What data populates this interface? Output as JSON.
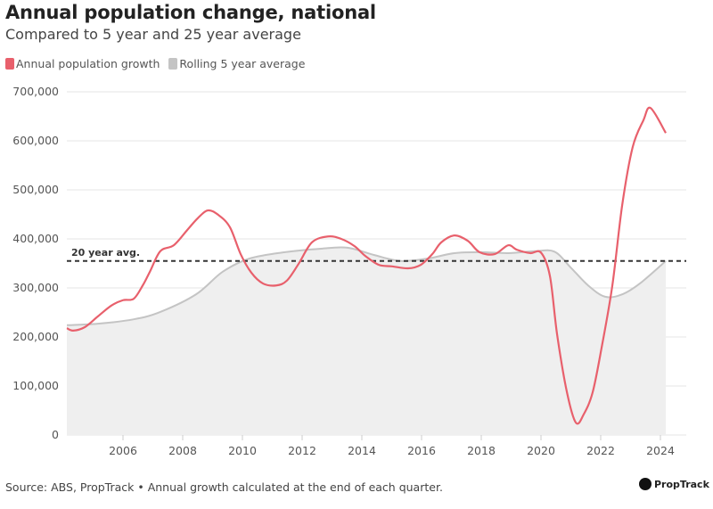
{
  "chart_data": {
    "type": "line",
    "title": "Annual population change, national",
    "subtitle": "Compared to 5 year and 25 year average",
    "xlabel": "",
    "ylabel": "",
    "xlim": [
      2004.1,
      2024.6
    ],
    "ylim": [
      0,
      700000
    ],
    "x_ticks": [
      "2006",
      "2008",
      "2010",
      "2012",
      "2014",
      "2016",
      "2018",
      "2020",
      "2022",
      "2024"
    ],
    "y_ticks": [
      "0",
      "100,000",
      "200,000",
      "300,000",
      "400,000",
      "500,000",
      "600,000",
      "700,000"
    ],
    "grid": true,
    "legend_position": "top-left",
    "series": [
      {
        "name": "Annual population growth",
        "color": "#e8606c",
        "style": "line",
        "points": [
          [
            2004.12,
            218000
          ],
          [
            2004.33,
            213000
          ],
          [
            2004.72,
            220000
          ],
          [
            2005.16,
            242000
          ],
          [
            2005.61,
            264000
          ],
          [
            2006.0,
            275000
          ],
          [
            2006.36,
            278000
          ],
          [
            2006.66,
            305000
          ],
          [
            2006.9,
            333000
          ],
          [
            2007.25,
            375000
          ],
          [
            2007.7,
            387000
          ],
          [
            2008.15,
            418000
          ],
          [
            2008.5,
            442000
          ],
          [
            2008.84,
            458000
          ],
          [
            2009.19,
            449000
          ],
          [
            2009.58,
            424000
          ],
          [
            2009.94,
            369000
          ],
          [
            2010.3,
            331000
          ],
          [
            2010.69,
            309000
          ],
          [
            2011.13,
            305000
          ],
          [
            2011.49,
            315000
          ],
          [
            2011.88,
            349000
          ],
          [
            2012.33,
            393000
          ],
          [
            2012.87,
            405000
          ],
          [
            2013.31,
            400000
          ],
          [
            2013.76,
            385000
          ],
          [
            2014.12,
            365000
          ],
          [
            2014.57,
            347000
          ],
          [
            2015.01,
            344000
          ],
          [
            2015.55,
            340000
          ],
          [
            2015.97,
            347000
          ],
          [
            2016.36,
            369000
          ],
          [
            2016.66,
            393000
          ],
          [
            2017.1,
            407000
          ],
          [
            2017.55,
            396000
          ],
          [
            2017.94,
            373000
          ],
          [
            2018.45,
            369000
          ],
          [
            2018.9,
            387000
          ],
          [
            2019.19,
            378000
          ],
          [
            2019.64,
            371000
          ],
          [
            2020.0,
            372000
          ],
          [
            2020.3,
            324000
          ],
          [
            2020.54,
            205000
          ],
          [
            2020.87,
            87000
          ],
          [
            2021.17,
            25000
          ],
          [
            2021.43,
            42000
          ],
          [
            2021.73,
            87000
          ],
          [
            2022.03,
            178000
          ],
          [
            2022.39,
            305000
          ],
          [
            2022.72,
            469000
          ],
          [
            2023.07,
            587000
          ],
          [
            2023.43,
            642000
          ],
          [
            2023.67,
            667000
          ],
          [
            2024.18,
            616000
          ]
        ]
      },
      {
        "name": "Rolling 5 year average",
        "color": "#c4c4c4",
        "style": "area",
        "points": [
          [
            2004.12,
            224000
          ],
          [
            2005.16,
            227000
          ],
          [
            2006.36,
            236000
          ],
          [
            2007.25,
            251000
          ],
          [
            2008.45,
            287000
          ],
          [
            2009.34,
            333000
          ],
          [
            2010.24,
            360000
          ],
          [
            2011.43,
            373000
          ],
          [
            2012.63,
            380000
          ],
          [
            2013.52,
            382000
          ],
          [
            2014.42,
            367000
          ],
          [
            2015.31,
            355000
          ],
          [
            2016.21,
            360000
          ],
          [
            2017.1,
            371000
          ],
          [
            2018.0,
            373000
          ],
          [
            2018.9,
            371000
          ],
          [
            2019.79,
            375000
          ],
          [
            2020.45,
            374000
          ],
          [
            2020.99,
            342000
          ],
          [
            2021.58,
            305000
          ],
          [
            2022.15,
            282000
          ],
          [
            2022.72,
            287000
          ],
          [
            2023.31,
            309000
          ],
          [
            2024.18,
            355000
          ]
        ]
      }
    ],
    "annotations": [
      {
        "label": "20 year avg.",
        "y": 355000,
        "style": "dashed"
      }
    ]
  },
  "footer": {
    "source": "Source: ABS, PropTrack • Annual growth calculated at the end of each quarter.",
    "logo_text": "PropTrack"
  }
}
